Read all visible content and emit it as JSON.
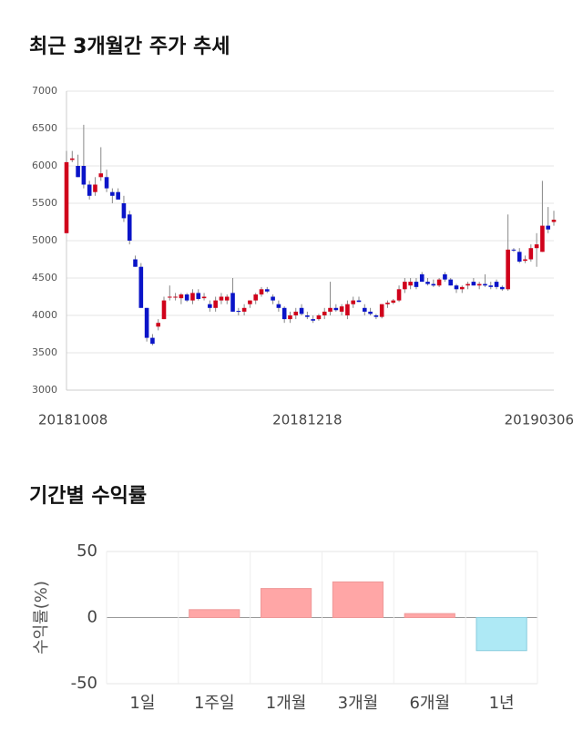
{
  "chart_data": [
    {
      "type": "candlestick",
      "title": "최근 3개월간 주가 추세",
      "categories": [
        "20181008",
        null,
        null,
        null,
        null,
        null,
        null,
        null,
        null,
        null,
        null,
        null,
        null,
        null,
        null,
        null,
        null,
        null,
        null,
        null,
        null,
        null,
        null,
        null,
        null,
        null,
        null,
        null,
        null,
        null,
        null,
        null,
        null,
        null,
        null,
        null,
        null,
        null,
        null,
        null,
        null,
        null,
        "20181218",
        null,
        null,
        null,
        null,
        null,
        null,
        null,
        null,
        null,
        null,
        null,
        null,
        null,
        null,
        null,
        null,
        null,
        null,
        null,
        null,
        null,
        null,
        null,
        null,
        null,
        null,
        null,
        null,
        null,
        null,
        null,
        null,
        null,
        null,
        null,
        null,
        null,
        null,
        null,
        null,
        null,
        null,
        "20190306"
      ],
      "values": [
        [
          5100,
          6200,
          5100,
          6050
        ],
        [
          6080,
          6200,
          6050,
          6100
        ],
        [
          6000,
          6150,
          5850,
          5850
        ],
        [
          6000,
          6550,
          5700,
          5750
        ],
        [
          5750,
          5800,
          5550,
          5600
        ],
        [
          5650,
          5850,
          5600,
          5750
        ],
        [
          5850,
          6250,
          5800,
          5900
        ],
        [
          5850,
          5950,
          5650,
          5700
        ],
        [
          5650,
          5700,
          5500,
          5600
        ],
        [
          5650,
          5700,
          5550,
          5550
        ],
        [
          5500,
          5600,
          5250,
          5300
        ],
        [
          5350,
          5400,
          4950,
          5000
        ],
        [
          4750,
          4800,
          4650,
          4650
        ],
        [
          4650,
          4700,
          4100,
          4100
        ],
        [
          4100,
          4100,
          3650,
          3700
        ],
        [
          3700,
          3750,
          3600,
          3620
        ],
        [
          3850,
          3950,
          3800,
          3900
        ],
        [
          3950,
          4250,
          3950,
          4200
        ],
        [
          4250,
          4400,
          4200,
          4250
        ],
        [
          4250,
          4300,
          4200,
          4250
        ],
        [
          4230,
          4300,
          4150,
          4280
        ],
        [
          4280,
          4300,
          4180,
          4200
        ],
        [
          4200,
          4350,
          4150,
          4300
        ],
        [
          4300,
          4350,
          4200,
          4220
        ],
        [
          4230,
          4300,
          4200,
          4250
        ],
        [
          4150,
          4200,
          4050,
          4100
        ],
        [
          4100,
          4250,
          4050,
          4200
        ],
        [
          4200,
          4300,
          4150,
          4250
        ],
        [
          4200,
          4280,
          4150,
          4250
        ],
        [
          4300,
          4500,
          4050,
          4050
        ],
        [
          4060,
          4100,
          4000,
          4050
        ],
        [
          4050,
          4150,
          4000,
          4100
        ],
        [
          4150,
          4200,
          4100,
          4200
        ],
        [
          4200,
          4300,
          4150,
          4280
        ],
        [
          4280,
          4380,
          4250,
          4350
        ],
        [
          4350,
          4380,
          4300,
          4320
        ],
        [
          4250,
          4280,
          4150,
          4200
        ],
        [
          4150,
          4200,
          4050,
          4100
        ],
        [
          4100,
          4120,
          3900,
          3950
        ],
        [
          3950,
          4050,
          3900,
          4000
        ],
        [
          4000,
          4100,
          3950,
          4050
        ],
        [
          4100,
          4150,
          4000,
          4020
        ],
        [
          4000,
          4050,
          3950,
          3980
        ],
        [
          3950,
          4000,
          3900,
          3930
        ],
        [
          3950,
          4020,
          3930,
          4000
        ],
        [
          4000,
          4100,
          3950,
          4050
        ],
        [
          4050,
          4450,
          4000,
          4100
        ],
        [
          4100,
          4150,
          4050,
          4070
        ],
        [
          4050,
          4150,
          4000,
          4120
        ],
        [
          4000,
          4200,
          3950,
          4150
        ],
        [
          4150,
          4250,
          4100,
          4200
        ],
        [
          4200,
          4250,
          4180,
          4180
        ],
        [
          4100,
          4150,
          4000,
          4050
        ],
        [
          4050,
          4100,
          4000,
          4020
        ],
        [
          4000,
          4020,
          3950,
          3980
        ],
        [
          3980,
          4150,
          3960,
          4150
        ],
        [
          4150,
          4200,
          4100,
          4170
        ],
        [
          4170,
          4220,
          4150,
          4200
        ],
        [
          4200,
          4400,
          4180,
          4350
        ],
        [
          4350,
          4500,
          4300,
          4450
        ],
        [
          4400,
          4500,
          4350,
          4450
        ],
        [
          4450,
          4500,
          4350,
          4380
        ],
        [
          4550,
          4580,
          4450,
          4450
        ],
        [
          4450,
          4500,
          4400,
          4420
        ],
        [
          4420,
          4480,
          4380,
          4400
        ],
        [
          4400,
          4500,
          4380,
          4480
        ],
        [
          4550,
          4580,
          4450,
          4480
        ],
        [
          4480,
          4500,
          4400,
          4400
        ],
        [
          4400,
          4420,
          4300,
          4350
        ],
        [
          4350,
          4400,
          4300,
          4380
        ],
        [
          4400,
          4450,
          4350,
          4420
        ],
        [
          4450,
          4500,
          4400,
          4400
        ],
        [
          4400,
          4450,
          4350,
          4420
        ],
        [
          4420,
          4550,
          4380,
          4400
        ],
        [
          4400,
          4450,
          4350,
          4380
        ],
        [
          4450,
          4480,
          4350,
          4380
        ],
        [
          4380,
          4400,
          4330,
          4350
        ],
        [
          4350,
          5350,
          4330,
          4880
        ],
        [
          4880,
          4900,
          4850,
          4870
        ],
        [
          4850,
          4900,
          4700,
          4720
        ],
        [
          4730,
          4800,
          4700,
          4750
        ],
        [
          4750,
          4950,
          4720,
          4900
        ],
        [
          4900,
          5100,
          4650,
          4950
        ],
        [
          4850,
          5800,
          4850,
          5200
        ],
        [
          5200,
          5450,
          5100,
          5150
        ],
        [
          5250,
          5400,
          5200,
          5280
        ]
      ],
      "up_color": "#d0021b",
      "down_color": "#0a14c8",
      "ylim": [
        3000,
        7000
      ],
      "yticks": [
        3000,
        3500,
        4000,
        4500,
        5000,
        5500,
        6000,
        6500,
        7000
      ],
      "grid": true
    },
    {
      "type": "bar",
      "title": "기간별 수익률",
      "y_label": "수익률(%)",
      "categories": [
        "1일",
        "1주일",
        "1개월",
        "3개월",
        "6개월",
        "1년"
      ],
      "values": [
        0,
        6,
        22,
        27,
        3,
        -25
      ],
      "positive_color": "#ffa6a6",
      "negative_color": "#aee9f5",
      "ylim": [
        -50,
        50
      ],
      "yticks": [
        -50,
        0,
        50
      ],
      "grid": true
    }
  ]
}
